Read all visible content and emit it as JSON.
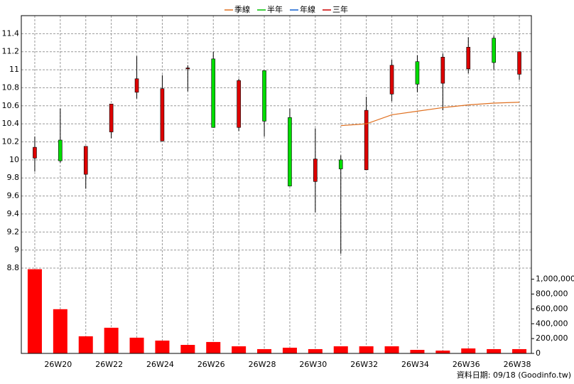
{
  "chart_data": {
    "type": "candlestick",
    "categories": [
      null,
      "26W20",
      null,
      "26W22",
      null,
      "26W24",
      null,
      "26W26",
      null,
      "26W28",
      null,
      "26W30",
      null,
      "26W32",
      null,
      "26W34",
      null,
      "26W36",
      null,
      "26W38"
    ],
    "open": [
      10.02,
      10.22,
      9.84,
      10.31,
      10.75,
      10.21,
      11.01,
      11.12,
      10.36,
      10.99,
      10.47,
      9.76,
      10.0,
      9.89,
      10.73,
      11.09,
      10.85,
      11.01,
      11.35,
      10.95
    ],
    "high": [
      10.26,
      10.57,
      10.15,
      10.62,
      11.15,
      10.94,
      11.05,
      11.2,
      10.9,
      10.99,
      10.57,
      10.35,
      10.05,
      10.7,
      11.11,
      11.16,
      11.18,
      11.36,
      11.38,
      11.2
    ],
    "low": [
      9.87,
      9.97,
      9.68,
      10.24,
      10.68,
      10.21,
      10.76,
      10.36,
      10.32,
      10.26,
      9.71,
      9.42,
      8.96,
      9.89,
      10.65,
      10.75,
      10.55,
      10.96,
      11.0,
      10.89
    ],
    "close": [
      10.14,
      9.99,
      10.15,
      10.62,
      10.9,
      10.79,
      11.02,
      10.36,
      10.88,
      10.43,
      9.71,
      10.01,
      9.9,
      10.55,
      11.05,
      10.84,
      11.14,
      11.25,
      11.08,
      11.2
    ],
    "up_color": "#dd0000",
    "down_color": "#00dd00",
    "series": [
      {
        "name": "季線",
        "color": "#e07020",
        "values": [
          null,
          null,
          null,
          null,
          null,
          null,
          null,
          null,
          null,
          null,
          null,
          null,
          10.38,
          10.4,
          10.5,
          10.54,
          10.58,
          10.61,
          10.63,
          10.64
        ]
      },
      {
        "name": "半年",
        "color": "#00c000",
        "values": [
          null,
          null,
          null,
          null,
          null,
          null,
          null,
          null,
          null,
          null,
          null,
          null,
          null,
          null,
          null,
          null,
          null,
          null,
          null,
          null
        ]
      },
      {
        "name": "年線",
        "color": "#1060d0",
        "values": [
          null,
          null,
          null,
          null,
          null,
          null,
          null,
          null,
          null,
          null,
          null,
          null,
          null,
          null,
          null,
          null,
          null,
          null,
          null,
          null
        ]
      },
      {
        "name": "三年",
        "color": "#cc0000",
        "values": [
          null,
          null,
          null,
          null,
          null,
          null,
          null,
          null,
          null,
          null,
          null,
          null,
          null,
          null,
          null,
          null,
          null,
          null,
          null,
          null
        ]
      }
    ],
    "volume": {
      "color": "#ff0000",
      "axis": "y2",
      "values": [
        1135000,
        596000,
        231000,
        346000,
        212000,
        173000,
        115000,
        154000,
        96000,
        58000,
        77000,
        58000,
        96000,
        96000,
        96000,
        48000,
        38000,
        67000,
        58000,
        58000
      ]
    },
    "ylim": [
      8.8,
      11.6
    ],
    "yticks": [
      8.8,
      9,
      9.2,
      9.4,
      9.6,
      9.8,
      10,
      10.2,
      10.4,
      10.6,
      10.8,
      11,
      11.2,
      11.4
    ],
    "y2lim": [
      0,
      1150000
    ],
    "y2ticks": [
      0,
      {
        "value": 200000,
        "label": "200,000"
      },
      {
        "value": 400000,
        "label": "400,000"
      },
      {
        "value": 600000,
        "label": "600,000"
      },
      {
        "value": 800000,
        "label": "800,000"
      },
      {
        "value": 1000000,
        "label": "1,000,000"
      }
    ],
    "grid": true,
    "legend": "top",
    "footer": "資料日期: 09/18  (Goodinfo.tw)"
  }
}
